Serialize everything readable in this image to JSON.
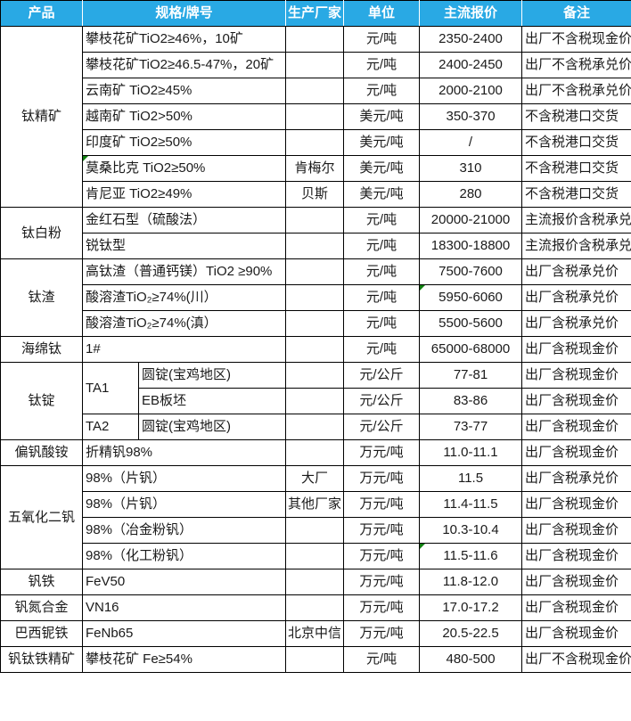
{
  "table": {
    "accent_color": "#29A9E4",
    "flag_color": "#108010",
    "grid_color": "#000000",
    "columns": [
      "产品",
      "规格/牌号",
      "生产厂家",
      "单位",
      "主流报价",
      "备注"
    ],
    "rows": [
      {
        "cells": [
          {
            "name": "product",
            "text": "钛精矿",
            "rowspan": 7
          },
          {
            "name": "spec",
            "text": "攀枝花矿TiO2≥46%，10矿",
            "colspan": 2
          },
          {
            "name": "mfr",
            "text": ""
          },
          {
            "name": "unit",
            "text": "元/吨"
          },
          {
            "name": "price",
            "text": "2350-2400"
          },
          {
            "name": "note",
            "text": "出厂不含税现金价"
          }
        ]
      },
      {
        "cells": [
          {
            "name": "spec",
            "text": "攀枝花矿TiO2≥46.5-47%，20矿",
            "colspan": 2
          },
          {
            "name": "mfr",
            "text": ""
          },
          {
            "name": "unit",
            "text": "元/吨"
          },
          {
            "name": "price",
            "text": "2400-2450"
          },
          {
            "name": "note",
            "text": "出厂不含税承兑价"
          }
        ]
      },
      {
        "cells": [
          {
            "name": "spec",
            "text": "云南矿 TiO2≥45%",
            "colspan": 2
          },
          {
            "name": "mfr",
            "text": ""
          },
          {
            "name": "unit",
            "text": "元/吨"
          },
          {
            "name": "price",
            "text": "2000-2100"
          },
          {
            "name": "note",
            "text": "出厂不含税承兑价"
          }
        ]
      },
      {
        "cells": [
          {
            "name": "spec",
            "text": "越南矿 TiO2>50%",
            "colspan": 2
          },
          {
            "name": "mfr",
            "text": ""
          },
          {
            "name": "unit",
            "text": "美元/吨"
          },
          {
            "name": "price",
            "text": "350-370"
          },
          {
            "name": "note",
            "text": "不含税港口交货"
          }
        ]
      },
      {
        "cells": [
          {
            "name": "spec",
            "text": "印度矿 TiO2≥50%",
            "colspan": 2
          },
          {
            "name": "mfr",
            "text": ""
          },
          {
            "name": "unit",
            "text": "美元/吨"
          },
          {
            "name": "price",
            "text": "/"
          },
          {
            "name": "note",
            "text": "不含税港口交货"
          }
        ]
      },
      {
        "cells": [
          {
            "name": "spec",
            "text": "莫桑比克 TiO2≥50%",
            "colspan": 2,
            "flag": true
          },
          {
            "name": "mfr",
            "text": "肯梅尔"
          },
          {
            "name": "unit",
            "text": "美元/吨"
          },
          {
            "name": "price",
            "text": "310"
          },
          {
            "name": "note",
            "text": "不含税港口交货"
          }
        ]
      },
      {
        "cells": [
          {
            "name": "spec",
            "text": "肯尼亚 TiO2≥49%",
            "colspan": 2
          },
          {
            "name": "mfr",
            "text": "贝斯"
          },
          {
            "name": "unit",
            "text": "美元/吨"
          },
          {
            "name": "price",
            "text": "280"
          },
          {
            "name": "note",
            "text": "不含税港口交货"
          }
        ]
      },
      {
        "cells": [
          {
            "name": "product",
            "text": "钛白粉",
            "rowspan": 2
          },
          {
            "name": "spec",
            "text": "金红石型（硫酸法）",
            "colspan": 2
          },
          {
            "name": "mfr",
            "text": ""
          },
          {
            "name": "unit",
            "text": "元/吨"
          },
          {
            "name": "price",
            "text": "20000-21000"
          },
          {
            "name": "note",
            "text": "主流报价含税承兑"
          }
        ]
      },
      {
        "cells": [
          {
            "name": "spec",
            "text": "锐钛型",
            "colspan": 2
          },
          {
            "name": "mfr",
            "text": ""
          },
          {
            "name": "unit",
            "text": "元/吨"
          },
          {
            "name": "price",
            "text": "18300-18800"
          },
          {
            "name": "note",
            "text": "主流报价含税承兑"
          }
        ]
      },
      {
        "cells": [
          {
            "name": "product",
            "text": "钛渣",
            "rowspan": 3
          },
          {
            "name": "spec",
            "text": "高钛渣（普通钙镁）TiO2 ≥90%",
            "colspan": 2
          },
          {
            "name": "mfr",
            "text": ""
          },
          {
            "name": "unit",
            "text": "元/吨"
          },
          {
            "name": "price",
            "text": "7500-7600"
          },
          {
            "name": "note",
            "text": "出厂含税承兑价"
          }
        ]
      },
      {
        "cells": [
          {
            "name": "spec",
            "text": "酸溶渣TiO₂≥74%(川）",
            "colspan": 2
          },
          {
            "name": "mfr",
            "text": ""
          },
          {
            "name": "unit",
            "text": "元/吨"
          },
          {
            "name": "price",
            "text": "5950-6060",
            "flag": true
          },
          {
            "name": "note",
            "text": "出厂含税承兑价"
          }
        ]
      },
      {
        "cells": [
          {
            "name": "spec",
            "text": "酸溶渣TiO₂≥74%(滇）",
            "colspan": 2
          },
          {
            "name": "mfr",
            "text": ""
          },
          {
            "name": "unit",
            "text": "元/吨"
          },
          {
            "name": "price",
            "text": "5500-5600"
          },
          {
            "name": "note",
            "text": "出厂含税承兑价"
          }
        ]
      },
      {
        "cells": [
          {
            "name": "product",
            "text": "海绵钛"
          },
          {
            "name": "spec",
            "text": "1#",
            "colspan": 2
          },
          {
            "name": "mfr",
            "text": ""
          },
          {
            "name": "unit",
            "text": "元/吨"
          },
          {
            "name": "price",
            "text": "65000-68000"
          },
          {
            "name": "note",
            "text": "出厂含税现金价"
          }
        ]
      },
      {
        "cells": [
          {
            "name": "product",
            "text": "钛锭",
            "rowspan": 3
          },
          {
            "name": "grade",
            "text": "TA1",
            "rowspan": 2
          },
          {
            "name": "form",
            "text": "圆锭(宝鸡地区)"
          },
          {
            "name": "mfr",
            "text": ""
          },
          {
            "name": "unit",
            "text": "元/公斤"
          },
          {
            "name": "price",
            "text": "77-81"
          },
          {
            "name": "note",
            "text": "出厂含税现金价"
          }
        ]
      },
      {
        "cells": [
          {
            "name": "form",
            "text": "EB板坯"
          },
          {
            "name": "mfr",
            "text": ""
          },
          {
            "name": "unit",
            "text": "元/公斤"
          },
          {
            "name": "price",
            "text": "83-86"
          },
          {
            "name": "note",
            "text": "出厂含税现金价"
          }
        ]
      },
      {
        "cells": [
          {
            "name": "grade",
            "text": "TA2"
          },
          {
            "name": "form",
            "text": "圆锭(宝鸡地区)"
          },
          {
            "name": "mfr",
            "text": ""
          },
          {
            "name": "unit",
            "text": "元/公斤"
          },
          {
            "name": "price",
            "text": "73-77"
          },
          {
            "name": "note",
            "text": "出厂含税现金价"
          }
        ]
      },
      {
        "cells": [
          {
            "name": "product",
            "text": "偏钒酸铵"
          },
          {
            "name": "spec",
            "text": "折精钒98%",
            "colspan": 2
          },
          {
            "name": "mfr",
            "text": ""
          },
          {
            "name": "unit",
            "text": "万元/吨"
          },
          {
            "name": "price",
            "text": "11.0-11.1"
          },
          {
            "name": "note",
            "text": "出厂含税现金价"
          }
        ]
      },
      {
        "cells": [
          {
            "name": "product",
            "text": "五氧化二钒",
            "rowspan": 4
          },
          {
            "name": "spec",
            "text": "98%（片钒）",
            "colspan": 2
          },
          {
            "name": "mfr",
            "text": "大厂"
          },
          {
            "name": "unit",
            "text": "万元/吨"
          },
          {
            "name": "price",
            "text": "11.5"
          },
          {
            "name": "note",
            "text": "出厂含税承兑价"
          }
        ]
      },
      {
        "cells": [
          {
            "name": "spec",
            "text": "98%（片钒）",
            "colspan": 2
          },
          {
            "name": "mfr",
            "text": "其他厂家"
          },
          {
            "name": "unit",
            "text": "万元/吨"
          },
          {
            "name": "price",
            "text": "11.4-11.5"
          },
          {
            "name": "note",
            "text": "出厂含税现金价"
          }
        ]
      },
      {
        "cells": [
          {
            "name": "spec",
            "text": "98%（冶金粉钒）",
            "colspan": 2
          },
          {
            "name": "mfr",
            "text": ""
          },
          {
            "name": "unit",
            "text": "万元/吨"
          },
          {
            "name": "price",
            "text": "10.3-10.4"
          },
          {
            "name": "note",
            "text": "出厂含税现金价"
          }
        ]
      },
      {
        "cells": [
          {
            "name": "spec",
            "text": "98%（化工粉钒）",
            "colspan": 2
          },
          {
            "name": "mfr",
            "text": ""
          },
          {
            "name": "unit",
            "text": "万元/吨"
          },
          {
            "name": "price",
            "text": "11.5-11.6",
            "flag": true
          },
          {
            "name": "note",
            "text": "出厂含税现金价"
          }
        ]
      },
      {
        "cells": [
          {
            "name": "product",
            "text": "钒铁"
          },
          {
            "name": "spec",
            "text": "FeV50",
            "colspan": 2
          },
          {
            "name": "mfr",
            "text": ""
          },
          {
            "name": "unit",
            "text": "万元/吨"
          },
          {
            "name": "price",
            "text": "11.8-12.0"
          },
          {
            "name": "note",
            "text": "出厂含税现金价"
          }
        ]
      },
      {
        "cells": [
          {
            "name": "product",
            "text": "钒氮合金"
          },
          {
            "name": "spec",
            "text": "VN16",
            "colspan": 2
          },
          {
            "name": "mfr",
            "text": ""
          },
          {
            "name": "unit",
            "text": "万元/吨"
          },
          {
            "name": "price",
            "text": "17.0-17.2"
          },
          {
            "name": "note",
            "text": "出厂含税现金价"
          }
        ]
      },
      {
        "cells": [
          {
            "name": "product",
            "text": "巴西铌铁"
          },
          {
            "name": "spec",
            "text": "FeNb65",
            "colspan": 2
          },
          {
            "name": "mfr",
            "text": "北京中信"
          },
          {
            "name": "unit",
            "text": "万元/吨"
          },
          {
            "name": "price",
            "text": "20.5-22.5"
          },
          {
            "name": "note",
            "text": "出厂含税现金价"
          }
        ]
      },
      {
        "cells": [
          {
            "name": "product",
            "text": "钒钛铁精矿"
          },
          {
            "name": "spec",
            "text": "攀枝花矿 Fe≥54%",
            "colspan": 2
          },
          {
            "name": "mfr",
            "text": ""
          },
          {
            "name": "unit",
            "text": "元/吨"
          },
          {
            "name": "price",
            "text": "480-500"
          },
          {
            "name": "note",
            "text": "出厂不含税现金价"
          }
        ]
      }
    ]
  }
}
